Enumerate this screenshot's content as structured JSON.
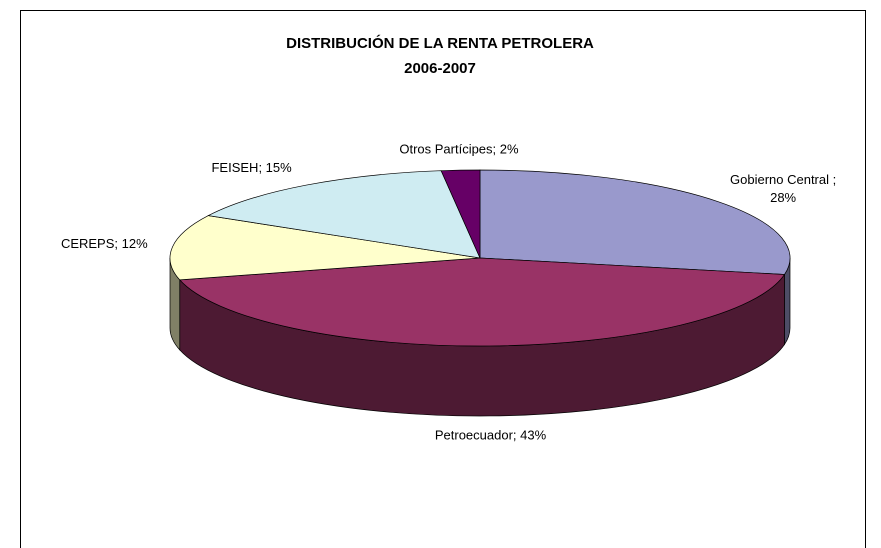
{
  "chart_data": {
    "type": "pie3d",
    "title": "DISTRIBUCIÓN DE LA RENTA PETROLERA",
    "subtitle": "2006-2007",
    "values": [
      28,
      43,
      12,
      15,
      2
    ],
    "value_labels": [
      "Gobierno Central ; 28%",
      "Petroecuador; 43%",
      "CEREPS; 12%",
      "FEISEH; 15%",
      "Otros Partícipes; 2%"
    ],
    "colors": [
      "#9999cc",
      "#993366",
      "#ffffcc",
      "#cfecf2",
      "#660066"
    ]
  }
}
